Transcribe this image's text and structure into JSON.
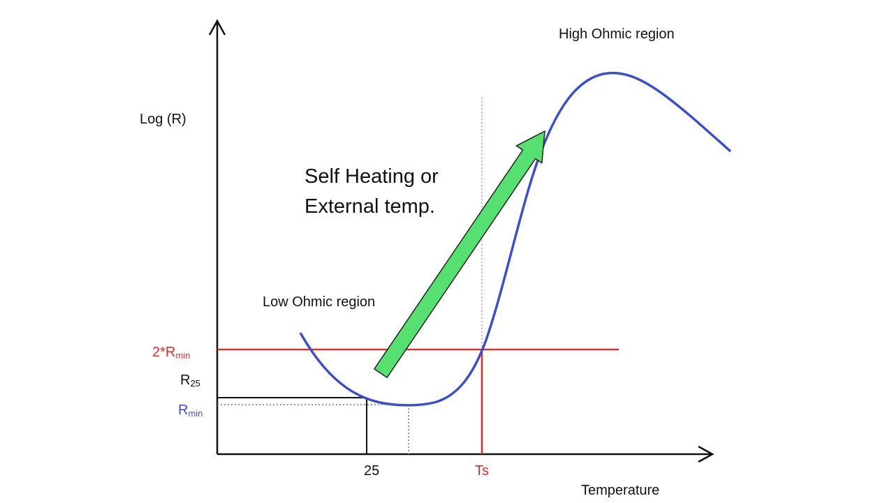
{
  "labels": {
    "y_axis": "Log (R)",
    "x_axis": "Temperature",
    "high_region": "High Ohmic region",
    "low_region": "Low Ohmic region",
    "arrow_text": [
      "Self Heating or",
      "External temp."
    ],
    "two_rmin": {
      "main": "2*R",
      "sub": "min"
    },
    "r25": {
      "main": "R",
      "sub": "25"
    },
    "rmin": {
      "main": "R",
      "sub": "min"
    },
    "x_25": "25",
    "x_ts": "Ts"
  }
}
